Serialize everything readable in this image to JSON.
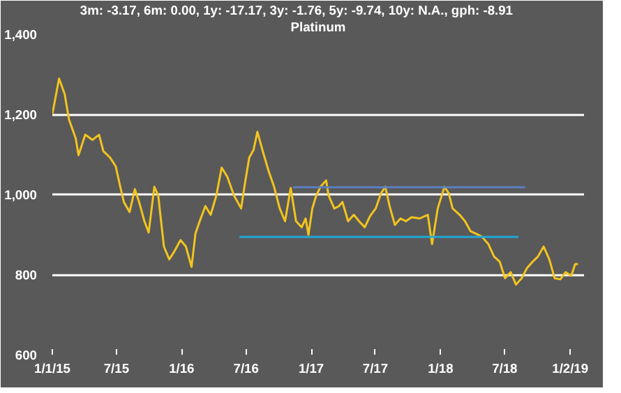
{
  "chart_data": {
    "type": "line",
    "title": "3m: -3.17,   6m: 0.00,   1y: -17.17,   3y: -1.76,   5y: -9.74,   10y: N.A.,   gph: -8.91",
    "subtitle": "Platinum",
    "xlim": [
      "2015-01-01",
      "2019-02-10"
    ],
    "ylim": [
      600,
      1400
    ],
    "xticks": [
      {
        "value": "2015-01-01",
        "label": "1/1/15"
      },
      {
        "value": "2015-07-01",
        "label": "7/15"
      },
      {
        "value": "2016-01-01",
        "label": "1/16"
      },
      {
        "value": "2016-07-01",
        "label": "7/16"
      },
      {
        "value": "2017-01-01",
        "label": "1/17"
      },
      {
        "value": "2017-07-01",
        "label": "7/17"
      },
      {
        "value": "2018-01-01",
        "label": "1/18"
      },
      {
        "value": "2018-07-01",
        "label": "7/18"
      },
      {
        "value": "2019-01-02",
        "label": "1/2/19"
      }
    ],
    "yticks": [
      {
        "value": 600,
        "label": "600"
      },
      {
        "value": 800,
        "label": "800"
      },
      {
        "value": 1000,
        "label": "1,000"
      },
      {
        "value": 1200,
        "label": "1,200"
      },
      {
        "value": 1400,
        "label": "1,400"
      }
    ],
    "grid": "y",
    "series": [
      {
        "color": "#f2c41e",
        "x": [
          "2015-01-01",
          "2015-01-20",
          "2015-02-05",
          "2015-02-17",
          "2015-03-08",
          "2015-03-16",
          "2015-04-04",
          "2015-04-24",
          "2015-05-13",
          "2015-05-25",
          "2015-06-13",
          "2015-06-29",
          "2015-07-11",
          "2015-07-22",
          "2015-08-07",
          "2015-08-22",
          "2015-09-03",
          "2015-09-18",
          "2015-09-30",
          "2015-10-16",
          "2015-10-27",
          "2015-11-12",
          "2015-11-27",
          "2015-12-09",
          "2015-12-29",
          "2016-01-13",
          "2016-01-29",
          "2016-02-09",
          "2016-02-21",
          "2016-03-08",
          "2016-03-23",
          "2016-04-08",
          "2016-04-23",
          "2016-05-09",
          "2016-05-28",
          "2016-06-17",
          "2016-06-28",
          "2016-07-10",
          "2016-07-22",
          "2016-08-02",
          "2016-08-18",
          "2016-09-02",
          "2016-09-18",
          "2016-10-04",
          "2016-10-19",
          "2016-11-04",
          "2016-11-19",
          "2016-12-05",
          "2016-12-16",
          "2016-12-24",
          "2017-01-04",
          "2017-01-15",
          "2017-01-27",
          "2017-02-12",
          "2017-02-19",
          "2017-03-07",
          "2017-03-19",
          "2017-03-30",
          "2017-04-15",
          "2017-05-01",
          "2017-05-16",
          "2017-06-01",
          "2017-06-16",
          "2017-07-02",
          "2017-07-17",
          "2017-07-29",
          "2017-08-10",
          "2017-08-25",
          "2017-09-10",
          "2017-09-25",
          "2017-10-11",
          "2017-11-03",
          "2017-11-26",
          "2017-12-08",
          "2017-12-24",
          "2018-01-12",
          "2018-01-24",
          "2018-02-04",
          "2018-02-24",
          "2018-03-11",
          "2018-03-27",
          "2018-04-11",
          "2018-04-27",
          "2018-05-16",
          "2018-06-01",
          "2018-06-17",
          "2018-07-02",
          "2018-07-18",
          "2018-08-02",
          "2018-08-18",
          "2018-09-02",
          "2018-09-18",
          "2018-10-03",
          "2018-10-19",
          "2018-11-04",
          "2018-11-19",
          "2018-12-05",
          "2018-12-20",
          "2019-01-05",
          "2019-01-16",
          "2019-01-24"
        ],
        "values": [
          1200,
          1289,
          1250,
          1187,
          1140,
          1098,
          1149,
          1136,
          1149,
          1108,
          1092,
          1070,
          1022,
          981,
          956,
          1013,
          981,
          933,
          905,
          1019,
          997,
          870,
          838,
          854,
          886,
          870,
          819,
          902,
          933,
          971,
          949,
          997,
          1067,
          1044,
          997,
          965,
          1029,
          1092,
          1111,
          1156,
          1105,
          1060,
          1019,
          965,
          933,
          1016,
          933,
          918,
          940,
          899,
          965,
          997,
          1019,
          1035,
          997,
          965,
          970,
          981,
          933,
          949,
          933,
          918,
          946,
          965,
          1003,
          1019,
          971,
          924,
          940,
          933,
          943,
          940,
          949,
          876,
          965,
          1019,
          1003,
          965,
          949,
          933,
          908,
          902,
          895,
          876,
          845,
          832,
          791,
          806,
          775,
          791,
          816,
          832,
          845,
          870,
          838,
          791,
          788,
          806,
          797,
          826,
          826
        ]
      },
      {
        "color": "#5b7fc0",
        "x": [
          "2016-11-11",
          "2018-08-28"
        ],
        "values": [
          1018,
          1018
        ]
      },
      {
        "color": "#21a8d8",
        "x": [
          "2016-06-12",
          "2018-08-09"
        ],
        "values": [
          894,
          894
        ]
      }
    ]
  }
}
